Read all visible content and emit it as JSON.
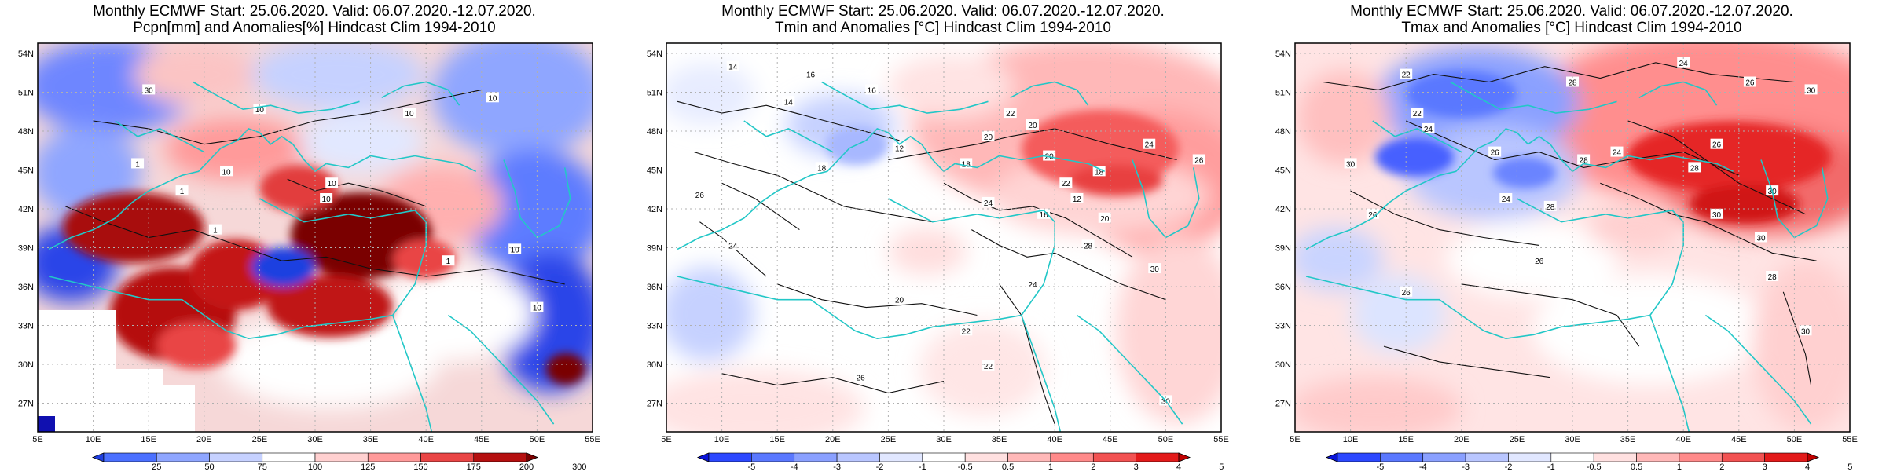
{
  "panels": [
    {
      "id": "pcpn",
      "title_line1": "Monthly ECMWF Start: 25.06.2020. Valid: 06.07.2020.-12.07.2020.",
      "title_line2": "Pcpn[mm] and Anomalies[%] Hindcast Clim 1994-2010",
      "colorbar_labels": [
        "25",
        "50",
        "75",
        "100",
        "125",
        "150",
        "175",
        "200",
        "300"
      ],
      "colorbar_colors": [
        "#1f3fe0",
        "#4b70ff",
        "#8fa6ff",
        "#c6d1ff",
        "#ffffff",
        "#ffd0d0",
        "#ff9a9a",
        "#e94545",
        "#b50f0f",
        "#7a0000"
      ],
      "contour_labels": [
        "10",
        "30",
        "10",
        "10",
        "1",
        "10",
        "10",
        "1",
        "10",
        "1",
        "10",
        "1",
        "10"
      ]
    },
    {
      "id": "tmin",
      "title_line1": "Monthly ECMWF Start: 25.06.2020. Valid: 06.07.2020.-12.07.2020.",
      "title_line2": "Tmin and Anomalies [°C] Hindcast Clim 1994-2010",
      "colorbar_labels": [
        "-5",
        "-4",
        "-3",
        "-2",
        "-1",
        "-0.5",
        "0.5",
        "1",
        "2",
        "3",
        "4",
        "5"
      ],
      "colorbar_colors": [
        "#0a14d8",
        "#2c48ff",
        "#5a78ff",
        "#8aa0ff",
        "#b9c6ff",
        "#e1e7ff",
        "#ffffff",
        "#ffe0e0",
        "#ffb8b8",
        "#ff8a8a",
        "#f25252",
        "#e31a1a",
        "#c00000"
      ],
      "contour_labels": [
        "14",
        "16",
        "14",
        "16",
        "18",
        "20",
        "12",
        "18",
        "22",
        "20",
        "20",
        "24",
        "26",
        "18",
        "22",
        "24",
        "12",
        "16",
        "20",
        "28",
        "30",
        "24",
        "22",
        "20",
        "24",
        "26",
        "30",
        "22",
        "26"
      ]
    },
    {
      "id": "tmax",
      "title_line1": "Monthly ECMWF Start: 25.06.2020. Valid: 06.07.2020.-12.07.2020.",
      "title_line2": "Tmax and Anomalies [°C] Hindcast Clim 1994-2010",
      "colorbar_labels": [
        "-5",
        "-4",
        "-3",
        "-2",
        "-1",
        "-0.5",
        "0.5",
        "1",
        "2",
        "3",
        "4",
        "5"
      ],
      "colorbar_colors": [
        "#0a14d8",
        "#2c48ff",
        "#5a78ff",
        "#8aa0ff",
        "#b9c6ff",
        "#e1e7ff",
        "#ffffff",
        "#ffe0e0",
        "#ffb8b8",
        "#ff8a8a",
        "#f25252",
        "#e31a1a",
        "#c00000"
      ],
      "contour_labels": [
        "22",
        "24",
        "26",
        "30",
        "28",
        "22",
        "24",
        "26",
        "28",
        "30",
        "24",
        "26",
        "28",
        "30",
        "26",
        "24",
        "28",
        "30",
        "26",
        "30",
        "26",
        "28",
        "30"
      ]
    }
  ],
  "lat_labels": [
    "54N",
    "51N",
    "48N",
    "45N",
    "42N",
    "39N",
    "36N",
    "33N",
    "30N",
    "27N"
  ],
  "lon_labels": [
    "5E",
    "10E",
    "15E",
    "20E",
    "25E",
    "30E",
    "35E",
    "40E",
    "45E",
    "50E",
    "55E"
  ],
  "colors": {
    "coastline": "#22c7c7",
    "contour": "#111111",
    "grid": "#b0b0b0"
  }
}
